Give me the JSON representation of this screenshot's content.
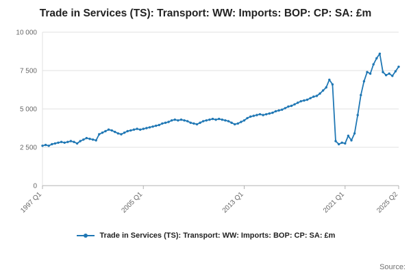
{
  "title": "Trade in Services (TS): Transport: WW: Imports: BOP: CP: SA: £m",
  "legend": {
    "label": "Trade in Services (TS): Transport: WW: Imports: BOP: CP: SA: £m"
  },
  "source": "Source:",
  "colors": {
    "line": "#1f77b4",
    "grid": "#e0e0e0",
    "axis": "#b0b0b0",
    "axis_text": "#666666",
    "title_text": "#222222"
  },
  "chart_data": {
    "type": "line",
    "title": "Trade in Services (TS): Transport: WW: Imports: BOP: CP: SA: £m",
    "xlabel": "",
    "ylabel": "",
    "x_start": "1997 Q1",
    "x_end": "2025 Q2",
    "frequency": "quarterly",
    "ylim": [
      0,
      10000
    ],
    "yticks": [
      0,
      2500,
      5000,
      7500,
      10000
    ],
    "ytick_labels": [
      "0",
      "2 500",
      "5 000",
      "7 500",
      "10 000"
    ],
    "xticks": [
      {
        "index": 0,
        "label": "1997 Q1"
      },
      {
        "index": 32,
        "label": "2005 Q1"
      },
      {
        "index": 64,
        "label": "2013 Q1"
      },
      {
        "index": 96,
        "label": "2021 Q1"
      },
      {
        "index": 113,
        "label": "2025 Q2"
      }
    ],
    "grid": true,
    "legend_position": "bottom",
    "values": [
      2600,
      2650,
      2600,
      2700,
      2750,
      2800,
      2850,
      2800,
      2850,
      2900,
      2850,
      2750,
      2900,
      3000,
      3100,
      3050,
      3000,
      2950,
      3350,
      3450,
      3550,
      3650,
      3600,
      3500,
      3400,
      3350,
      3450,
      3550,
      3600,
      3650,
      3700,
      3650,
      3700,
      3750,
      3800,
      3850,
      3900,
      3950,
      4050,
      4100,
      4150,
      4250,
      4300,
      4250,
      4300,
      4250,
      4200,
      4100,
      4050,
      4000,
      4100,
      4200,
      4250,
      4300,
      4350,
      4300,
      4350,
      4300,
      4250,
      4200,
      4100,
      4000,
      4050,
      4150,
      4250,
      4400,
      4500,
      4550,
      4600,
      4650,
      4600,
      4650,
      4700,
      4750,
      4850,
      4900,
      4950,
      5050,
      5150,
      5200,
      5300,
      5400,
      5500,
      5550,
      5600,
      5700,
      5800,
      5850,
      6000,
      6200,
      6400,
      6900,
      6600,
      2900,
      2700,
      2800,
      2750,
      3250,
      2950,
      3400,
      4600,
      5900,
      6800,
      7400,
      7300,
      7900,
      8300,
      8600,
      7400,
      7200,
      7300,
      7150,
      7450,
      7750
    ]
  }
}
